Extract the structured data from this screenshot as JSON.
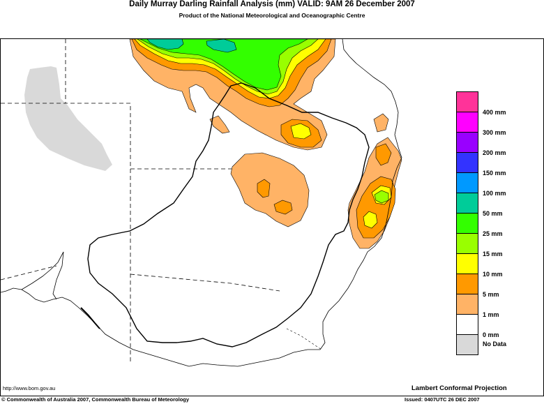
{
  "header": {
    "title": "Daily Murray Darling Rainfall Analysis (mm)  VALID: 9AM 26 December 2007",
    "subtitle": "Product of the National Meteorological and Oceanographic Centre"
  },
  "legend": {
    "items": [
      {
        "label": "400 mm",
        "color": "#ff3399"
      },
      {
        "label": "300 mm",
        "color": "#ff00ff"
      },
      {
        "label": "200 mm",
        "color": "#9900ff"
      },
      {
        "label": "150 mm",
        "color": "#3333ff"
      },
      {
        "label": "100 mm",
        "color": "#0099ff"
      },
      {
        "label": "50 mm",
        "color": "#00cc99"
      },
      {
        "label": "25 mm",
        "color": "#33ff00"
      },
      {
        "label": "15 mm",
        "color": "#99ff00"
      },
      {
        "label": "10 mm",
        "color": "#ffff00"
      },
      {
        "label": "5 mm",
        "color": "#ff9900"
      },
      {
        "label": "1 mm",
        "color": "#ffb366"
      },
      {
        "label": "0 mm",
        "color": "#ffffff"
      },
      {
        "label": "No Data",
        "color": "#d9d9d9"
      }
    ]
  },
  "footer": {
    "url": "http://www.bom.gov.au",
    "projection": "Lambert Conformal Projection",
    "copyright": "© Commonwealth of Australia 2007, Commonwealth Bureau of Meteorology",
    "issued": "Issued: 0407UTC 26 DEC 2007"
  }
}
